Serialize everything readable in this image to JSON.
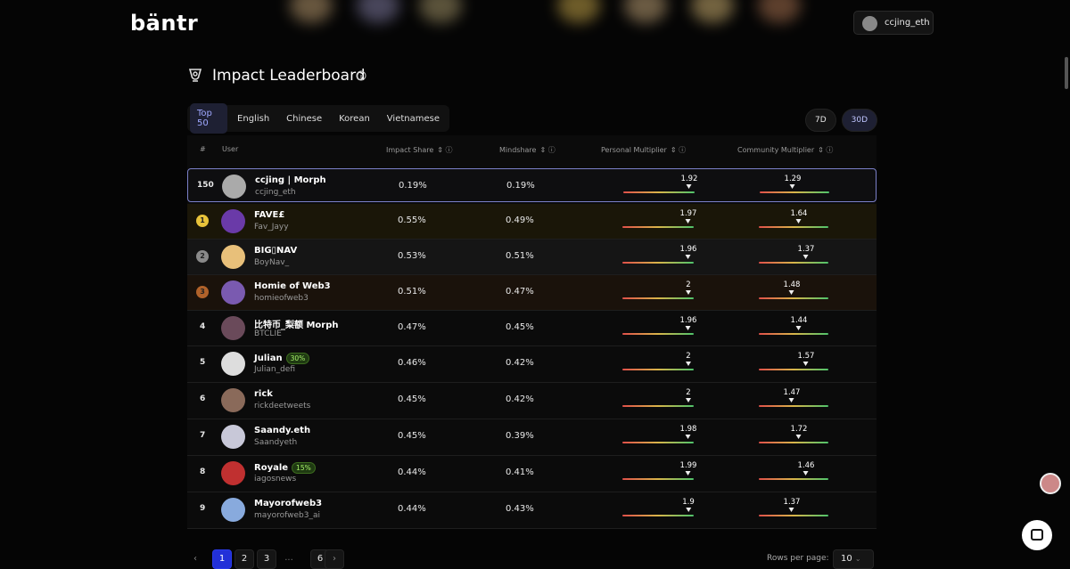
{
  "header": {
    "logo": "bäntr",
    "user": "ccjing_eth"
  },
  "title": "Impact Leaderboard",
  "tabs": [
    "Top 50",
    "English",
    "Chinese",
    "Korean",
    "Vietnamese"
  ],
  "periods": [
    "7D",
    "30D"
  ],
  "table": {
    "columns": [
      "#",
      "User",
      "Impact Share",
      "Mindshare",
      "Personal Multiplier",
      "Community Multiplier"
    ],
    "rows": [
      {
        "rank": "150",
        "name": "ccjing | Morph",
        "handle": "ccjing_eth",
        "impact": "0.19%",
        "mindshare": "0.19%",
        "personal": "1.92",
        "community": "1.29"
      },
      {
        "rank": "1",
        "name": "FAVE£",
        "handle": "Fav_Jayy",
        "impact": "0.55%",
        "mindshare": "0.49%",
        "personal": "1.97",
        "community": "1.64"
      },
      {
        "rank": "2",
        "name": "BIG▯NAV",
        "handle": "BoyNav_",
        "impact": "0.53%",
        "mindshare": "0.51%",
        "personal": "1.96",
        "community": "1.37"
      },
      {
        "rank": "3",
        "name": "Homie of Web3",
        "handle": "homieofweb3",
        "impact": "0.51%",
        "mindshare": "0.47%",
        "personal": "2",
        "community": "1.48"
      },
      {
        "rank": "4",
        "name": "比特币_梨额 Morph",
        "handle": "BTCLIE",
        "impact": "0.47%",
        "mindshare": "0.45%",
        "personal": "1.96",
        "community": "1.44"
      },
      {
        "rank": "5",
        "name": "Julian",
        "badge": "30%",
        "handle": "Julian_defi",
        "impact": "0.46%",
        "mindshare": "0.42%",
        "personal": "2",
        "community": "1.57"
      },
      {
        "rank": "6",
        "name": "rick",
        "handle": "rickdeetweets",
        "impact": "0.45%",
        "mindshare": "0.42%",
        "personal": "2",
        "community": "1.47"
      },
      {
        "rank": "7",
        "name": "Saandy.eth",
        "handle": "Saandyeth",
        "impact": "0.45%",
        "mindshare": "0.39%",
        "personal": "1.98",
        "community": "1.72"
      },
      {
        "rank": "8",
        "name": "Royale",
        "badge": "15%",
        "handle": "iagosnews",
        "impact": "0.44%",
        "mindshare": "0.41%",
        "personal": "1.99",
        "community": "1.46"
      },
      {
        "rank": "9",
        "name": "Mayorofweb3",
        "handle": "mayorofweb3_ai",
        "impact": "0.44%",
        "mindshare": "0.43%",
        "personal": "1.9",
        "community": "1.37"
      }
    ]
  },
  "pagination": {
    "pages": [
      "1",
      "2",
      "3",
      "...",
      "6"
    ],
    "rows_label": "Rows per page:",
    "rows_value": "10"
  }
}
